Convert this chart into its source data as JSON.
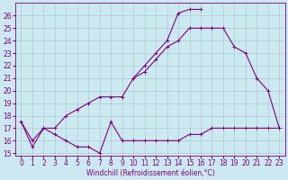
{
  "xlabel": "Windchill (Refroidissement éolien,°C)",
  "x_values": [
    0,
    1,
    2,
    3,
    4,
    5,
    6,
    7,
    8,
    9,
    10,
    11,
    12,
    13,
    14,
    15,
    16,
    17,
    18,
    19,
    20,
    21,
    22,
    23
  ],
  "line1_y": [
    17.5,
    15.5,
    17.0,
    16.5,
    16.0,
    15.5,
    15.5,
    15.0,
    17.5,
    16.0,
    16.0,
    16.0,
    16.0,
    16.0,
    16.0,
    16.5,
    16.5,
    17.0,
    17.0,
    17.0,
    17.0,
    17.0,
    17.0,
    17.0
  ],
  "line2_y": [
    17.5,
    16.0,
    17.0,
    17.0,
    18.0,
    18.5,
    19.0,
    19.5,
    19.5,
    19.5,
    21.0,
    21.5,
    22.5,
    23.5,
    24.0,
    25.0,
    25.0,
    25.0,
    25.0,
    23.5,
    23.0,
    21.0,
    20.0,
    17.0
  ],
  "line3_x": [
    10,
    11,
    12,
    13,
    14,
    15,
    16
  ],
  "line3_y": [
    21.0,
    22.0,
    23.0,
    24.0,
    26.2,
    26.5,
    26.5
  ],
  "ylim_min": 14.8,
  "ylim_max": 27.0,
  "xlim_min": -0.5,
  "xlim_max": 23.5,
  "yticks": [
    15,
    16,
    17,
    18,
    19,
    20,
    21,
    22,
    23,
    24,
    25,
    26
  ],
  "xticks": [
    0,
    1,
    2,
    3,
    4,
    5,
    6,
    7,
    8,
    9,
    10,
    11,
    12,
    13,
    14,
    15,
    16,
    17,
    18,
    19,
    20,
    21,
    22,
    23
  ],
  "line_color": "#800080",
  "bg_color": "#cce8f0",
  "grid_color": "#aacccc",
  "linewidth": 0.8,
  "markersize": 3,
  "tick_fontsize": 5.5,
  "xlabel_fontsize": 5.5
}
